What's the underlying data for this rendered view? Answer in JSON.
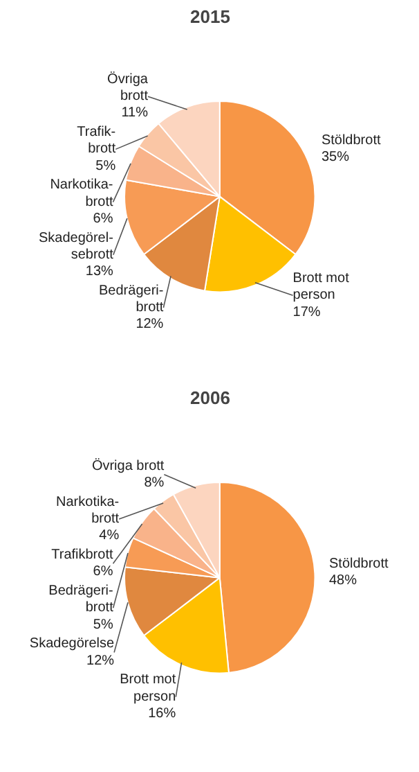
{
  "chart_data": [
    {
      "type": "pie",
      "title": "2015",
      "categories": [
        "Stöldbrott",
        "Brott mot\nperson",
        "Bedrägeri-\nbrott",
        "Skadegörel-\nsebrott",
        "Narkotika-\nbrott",
        "Trafik-\nbrott",
        "Övriga\nbrott"
      ],
      "values": [
        35,
        17,
        12,
        13,
        6,
        5,
        11
      ],
      "colors": [
        "#f79646",
        "#ffc000",
        "#e0883f",
        "#f79b55",
        "#f9b38a",
        "#fac6a5",
        "#fcd5bf"
      ],
      "value_labels": [
        "35%",
        "17%",
        "12%",
        "13%",
        "6%",
        "5%",
        "11%"
      ]
    },
    {
      "type": "pie",
      "title": "2006",
      "categories": [
        "Stöldbrott",
        "Brott mot\nperson",
        "Skadegörelse",
        "Bedrägeri-\nbrott",
        "Trafikbrott",
        "Narkotika-\nbrott",
        "Övriga brott"
      ],
      "values": [
        48,
        16,
        12,
        5,
        6,
        4,
        8
      ],
      "colors": [
        "#f79646",
        "#ffc000",
        "#e0883f",
        "#f79b55",
        "#f9b38a",
        "#fac6a5",
        "#fcd5bf"
      ],
      "value_labels": [
        "48%",
        "16%",
        "12%",
        "5%",
        "6%",
        "4%",
        "8%"
      ]
    }
  ]
}
